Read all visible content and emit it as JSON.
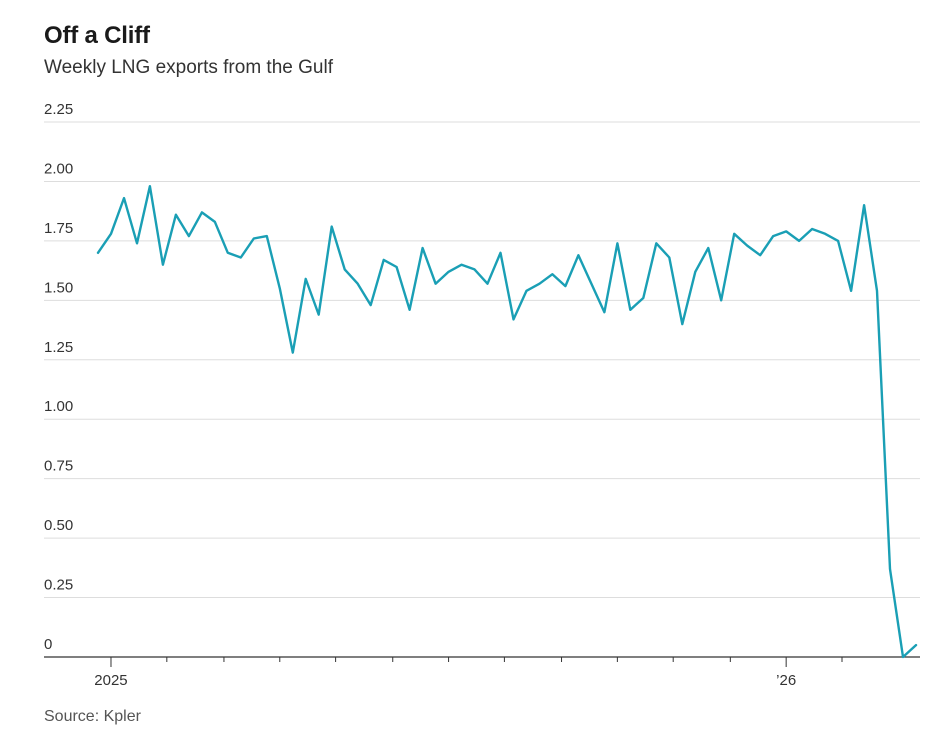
{
  "header": {
    "title": "Off a Cliff",
    "subtitle": "Weekly LNG exports from the Gulf"
  },
  "footer": {
    "source": "Source: Kpler"
  },
  "colors": {
    "series": "#1a9fb5",
    "grid": "#dddddd",
    "axis": "#333333"
  },
  "chart_data": {
    "type": "line",
    "title": "Off a Cliff",
    "subtitle": "Weekly LNG exports from the Gulf",
    "xlabel": "",
    "ylabel": "",
    "ylim": [
      0,
      2.25
    ],
    "yticks": [
      0,
      0.25,
      0.5,
      0.75,
      1.0,
      1.25,
      1.5,
      1.75,
      2.0,
      2.25
    ],
    "ytick_labels": [
      "0",
      "0.25",
      "0.50",
      "0.75",
      "1.00",
      "1.25",
      "1.50",
      "1.75",
      "2.00",
      "2.25"
    ],
    "xticks": [
      {
        "week": 0,
        "label": "2025"
      },
      {
        "week": 52,
        "label": "’26"
      }
    ],
    "x_minor_ticks": [
      4.3,
      8.7,
      13,
      17.3,
      21.7,
      26,
      30.3,
      34.7,
      39,
      43.3,
      47.7,
      56.3
    ],
    "grid": true,
    "legend": "none",
    "series": [
      {
        "name": "Weekly LNG exports from the Gulf",
        "x": [
          -1,
          0,
          1,
          2,
          3,
          4,
          5,
          6,
          7,
          8,
          9,
          10,
          11,
          12,
          13,
          14,
          15,
          16,
          17,
          18,
          19,
          20,
          21,
          22,
          23,
          24,
          25,
          26,
          27,
          28,
          29,
          30,
          31,
          32,
          33,
          34,
          35,
          36,
          37,
          38,
          39,
          40,
          41,
          42,
          43,
          44,
          45,
          46,
          47,
          48,
          49,
          50,
          51,
          52,
          53,
          54,
          55,
          56,
          57,
          58,
          59,
          60,
          61,
          62
        ],
        "values": [
          1.7,
          1.78,
          1.93,
          1.74,
          1.98,
          1.65,
          1.86,
          1.77,
          1.87,
          1.83,
          1.7,
          1.68,
          1.76,
          1.77,
          1.55,
          1.28,
          1.59,
          1.44,
          1.81,
          1.63,
          1.57,
          1.48,
          1.67,
          1.64,
          1.46,
          1.72,
          1.57,
          1.62,
          1.65,
          1.63,
          1.57,
          1.7,
          1.42,
          1.54,
          1.57,
          1.61,
          1.56,
          1.69,
          1.57,
          1.45,
          1.74,
          1.46,
          1.51,
          1.74,
          1.68,
          1.4,
          1.62,
          1.72,
          1.5,
          1.78,
          1.73,
          1.69,
          1.77,
          1.79,
          1.75,
          1.8,
          1.78,
          1.75,
          1.54,
          1.9,
          1.54,
          0.37,
          0.0,
          0.05
        ]
      }
    ]
  }
}
